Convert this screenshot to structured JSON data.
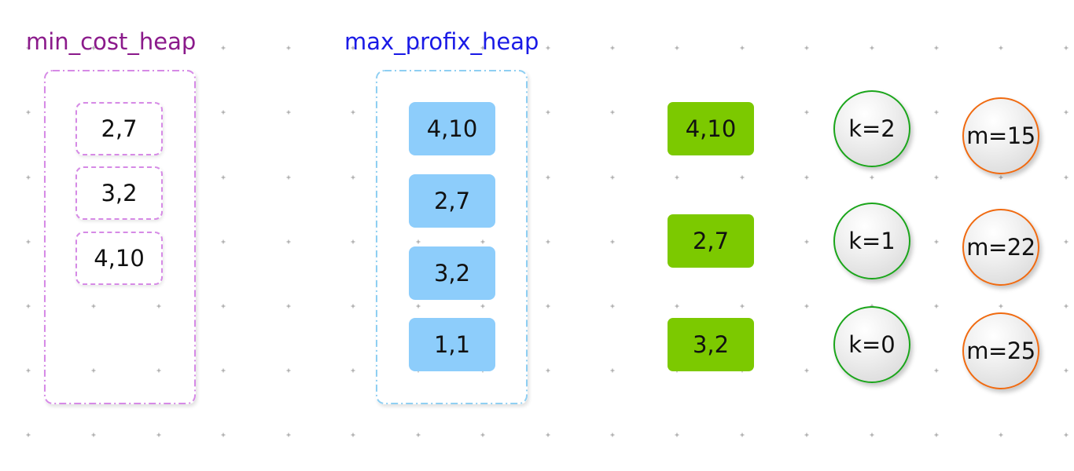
{
  "colors": {
    "min_title": "#8b1a8b",
    "max_title": "#1a1ae6",
    "min_border": "#d68ae6",
    "max_border": "#8fcff2",
    "max_fill": "#8dcdfb",
    "green_fill": "#7cc900",
    "k_border": "#1aa51a",
    "m_border": "#f06a10",
    "grid_dot": "#999999"
  },
  "min_cost_heap": {
    "title": "min_cost_heap",
    "items": [
      "2,7",
      "3,2",
      "4,10"
    ]
  },
  "max_profix_heap": {
    "title": "max_profix_heap",
    "items": [
      "4,10",
      "2,7",
      "3,2",
      "1,1"
    ]
  },
  "selected": {
    "items": [
      "4,10",
      "2,7",
      "3,2"
    ]
  },
  "k_values": [
    "k=2",
    "k=1",
    "k=0"
  ],
  "m_values": [
    "m=15",
    "m=22",
    "m=25"
  ]
}
